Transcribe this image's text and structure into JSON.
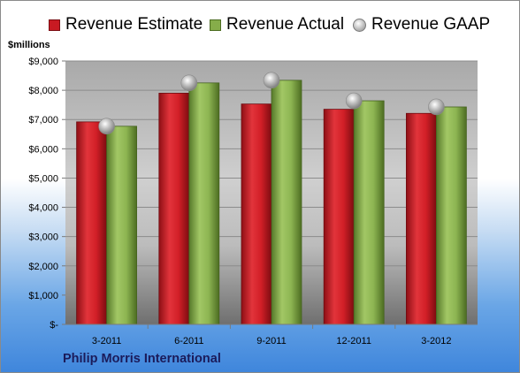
{
  "chart_data": {
    "type": "bar",
    "title": "",
    "ylabel": "$millions",
    "xlabel": "",
    "categories": [
      "3-2011",
      "6-2011",
      "9-2011",
      "12-2011",
      "3-2012"
    ],
    "series": [
      {
        "name": "Revenue Estimate",
        "kind": "bar",
        "color": "#c81a22",
        "values": [
          6920,
          7900,
          7530,
          7350,
          7210
        ]
      },
      {
        "name": "Revenue Actual",
        "kind": "bar",
        "color": "#86ad4a",
        "values": [
          6770,
          8250,
          8340,
          7640,
          7430
        ]
      },
      {
        "name": "Revenue GAAP",
        "kind": "marker",
        "color": "#b8b8b8",
        "values": [
          6770,
          8250,
          8340,
          7640,
          7430
        ]
      }
    ],
    "ylim": [
      0,
      9000
    ],
    "yticks": [
      0,
      1000,
      2000,
      3000,
      4000,
      5000,
      6000,
      7000,
      8000,
      9000
    ],
    "ytick_labels": [
      "$-",
      "$1,000",
      "$2,000",
      "$3,000",
      "$4,000",
      "$5,000",
      "$6,000",
      "$7,000",
      "$8,000",
      "$9,000"
    ],
    "grid": true,
    "legend_position": "top",
    "company": "Philip Morris International"
  }
}
